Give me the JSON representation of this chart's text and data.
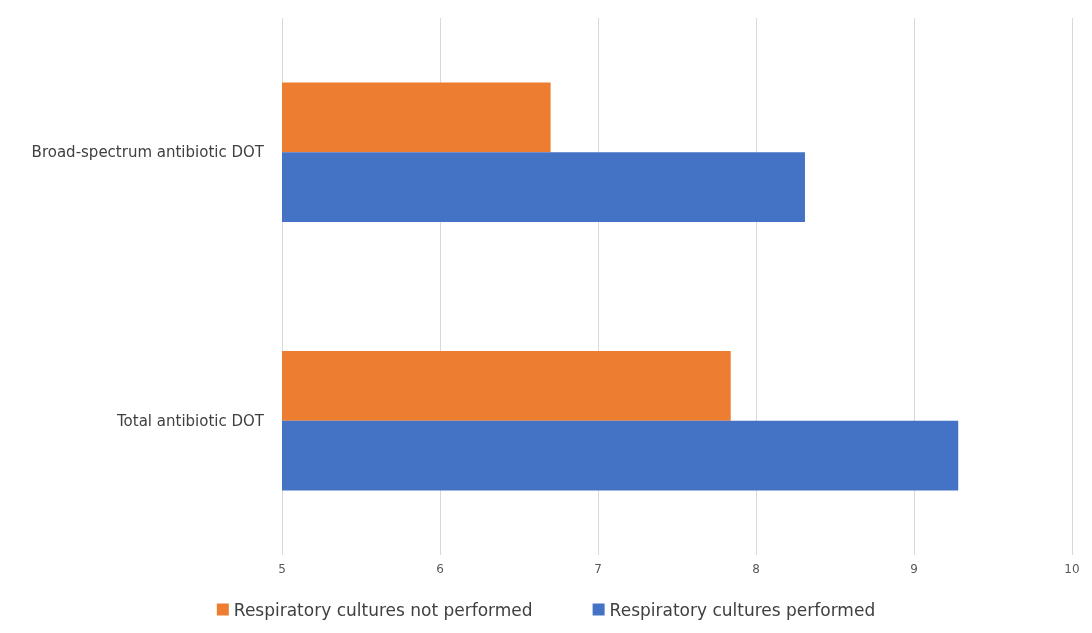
{
  "chart_data": {
    "type": "bar",
    "orientation": "horizontal",
    "categories": [
      "Broad-spectrum antibiotic DOT",
      "Total antibiotic DOT"
    ],
    "series": [
      {
        "name": "Respiratory cultures not performed",
        "color": "#ed7d31",
        "values": [
          6.7,
          7.84
        ]
      },
      {
        "name": "Respiratory cultures performed",
        "color": "#4472c4",
        "values": [
          8.31,
          9.28
        ]
      }
    ],
    "xlim": [
      5,
      10
    ],
    "xticks": [
      5,
      6,
      7,
      8,
      9,
      10
    ],
    "grid": "x",
    "legend": "bottom"
  }
}
